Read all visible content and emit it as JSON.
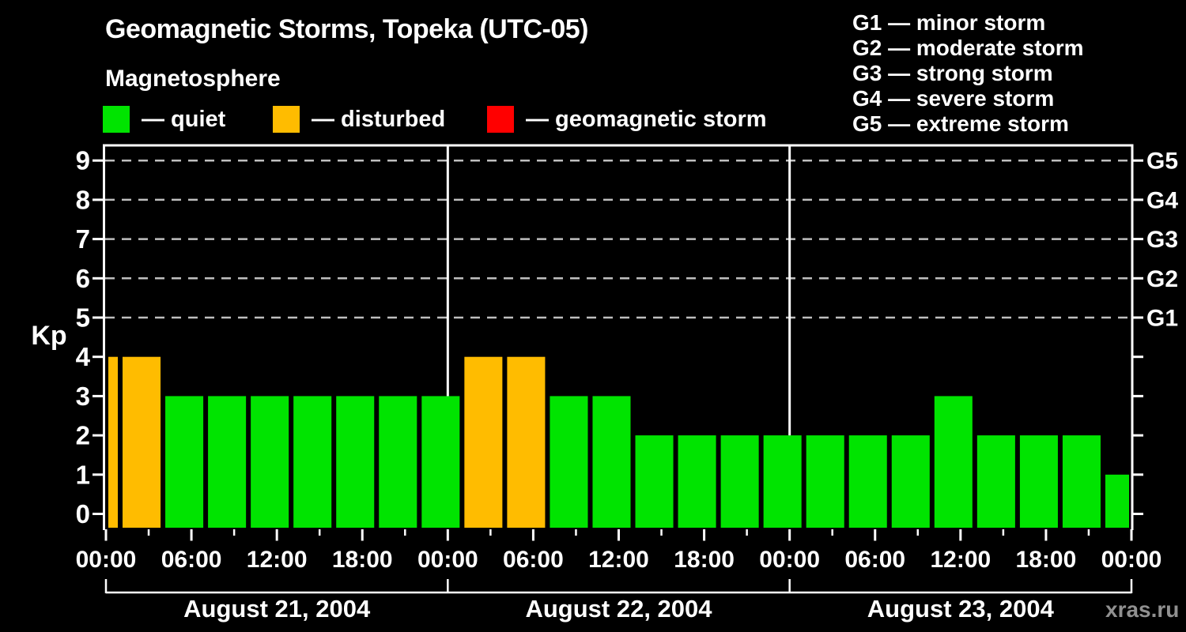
{
  "title": "Geomagnetic Storms, Topeka (UTC-05)",
  "subtitle": "Magnetosphere",
  "legend": {
    "items": [
      {
        "label": "— quiet",
        "color": "#00E400",
        "status": "quiet",
        "swatch_icon": "quiet-color-swatch"
      },
      {
        "label": "— disturbed",
        "color": "#FFBC00",
        "status": "disturbed",
        "swatch_icon": "disturbed-color-swatch"
      },
      {
        "label": "— geomagnetic storm",
        "color": "#FF0000",
        "status": "storm",
        "swatch_icon": "storm-color-swatch"
      }
    ]
  },
  "storm_scale_legend": [
    "G1 — minor storm",
    "G2 — moderate storm",
    "G3 — strong storm",
    "G4 — severe storm",
    "G5 — extreme storm"
  ],
  "watermark": "xras.ru",
  "chart_data": {
    "type": "bar",
    "ylabel": "Kp",
    "ylim": [
      0,
      9
    ],
    "yticks": [
      0,
      1,
      2,
      3,
      4,
      5,
      6,
      7,
      8,
      9
    ],
    "gridlines_kp": [
      5,
      6,
      7,
      8,
      9
    ],
    "right_axis_labels": [
      {
        "kp": 5,
        "label": "G1"
      },
      {
        "kp": 6,
        "label": "G2"
      },
      {
        "kp": 7,
        "label": "G3"
      },
      {
        "kp": 8,
        "label": "G4"
      },
      {
        "kp": 9,
        "label": "G5"
      }
    ],
    "xlim_hours": [
      0,
      72
    ],
    "time_ticks": [
      {
        "hour": 0,
        "label": "00:00"
      },
      {
        "hour": 6,
        "label": "06:00"
      },
      {
        "hour": 12,
        "label": "12:00"
      },
      {
        "hour": 18,
        "label": "18:00"
      },
      {
        "hour": 24,
        "label": "00:00"
      },
      {
        "hour": 30,
        "label": "06:00"
      },
      {
        "hour": 36,
        "label": "12:00"
      },
      {
        "hour": 42,
        "label": "18:00"
      },
      {
        "hour": 48,
        "label": "00:00"
      },
      {
        "hour": 54,
        "label": "06:00"
      },
      {
        "hour": 60,
        "label": "12:00"
      },
      {
        "hour": 66,
        "label": "18:00"
      },
      {
        "hour": 72,
        "label": "00:00"
      }
    ],
    "minor_tick_hours": [
      3,
      9,
      15,
      21,
      27,
      33,
      39,
      45,
      51,
      57,
      63,
      69
    ],
    "day_separator_hours": [
      24,
      48
    ],
    "days": [
      {
        "label": "August 21, 2004",
        "start_hour": 0,
        "end_hour": 24
      },
      {
        "label": "August 22, 2004",
        "start_hour": 24,
        "end_hour": 48
      },
      {
        "label": "August 23, 2004",
        "start_hour": 48,
        "end_hour": 72
      }
    ],
    "bars": [
      {
        "start_hour": 0,
        "end_hour": 1,
        "kp": 4,
        "status": "disturbed"
      },
      {
        "start_hour": 1,
        "end_hour": 4,
        "kp": 4,
        "status": "disturbed"
      },
      {
        "start_hour": 4,
        "end_hour": 7,
        "kp": 3,
        "status": "quiet"
      },
      {
        "start_hour": 7,
        "end_hour": 10,
        "kp": 3,
        "status": "quiet"
      },
      {
        "start_hour": 10,
        "end_hour": 13,
        "kp": 3,
        "status": "quiet"
      },
      {
        "start_hour": 13,
        "end_hour": 16,
        "kp": 3,
        "status": "quiet"
      },
      {
        "start_hour": 16,
        "end_hour": 19,
        "kp": 3,
        "status": "quiet"
      },
      {
        "start_hour": 19,
        "end_hour": 22,
        "kp": 3,
        "status": "quiet"
      },
      {
        "start_hour": 22,
        "end_hour": 25,
        "kp": 3,
        "status": "quiet"
      },
      {
        "start_hour": 25,
        "end_hour": 28,
        "kp": 4,
        "status": "disturbed"
      },
      {
        "start_hour": 28,
        "end_hour": 31,
        "kp": 4,
        "status": "disturbed"
      },
      {
        "start_hour": 31,
        "end_hour": 34,
        "kp": 3,
        "status": "quiet"
      },
      {
        "start_hour": 34,
        "end_hour": 37,
        "kp": 3,
        "status": "quiet"
      },
      {
        "start_hour": 37,
        "end_hour": 40,
        "kp": 2,
        "status": "quiet"
      },
      {
        "start_hour": 40,
        "end_hour": 43,
        "kp": 2,
        "status": "quiet"
      },
      {
        "start_hour": 43,
        "end_hour": 46,
        "kp": 2,
        "status": "quiet"
      },
      {
        "start_hour": 46,
        "end_hour": 49,
        "kp": 2,
        "status": "quiet"
      },
      {
        "start_hour": 49,
        "end_hour": 52,
        "kp": 2,
        "status": "quiet"
      },
      {
        "start_hour": 52,
        "end_hour": 55,
        "kp": 2,
        "status": "quiet"
      },
      {
        "start_hour": 55,
        "end_hour": 58,
        "kp": 2,
        "status": "quiet"
      },
      {
        "start_hour": 58,
        "end_hour": 61,
        "kp": 3,
        "status": "quiet"
      },
      {
        "start_hour": 61,
        "end_hour": 64,
        "kp": 2,
        "status": "quiet"
      },
      {
        "start_hour": 64,
        "end_hour": 67,
        "kp": 2,
        "status": "quiet"
      },
      {
        "start_hour": 67,
        "end_hour": 70,
        "kp": 2,
        "status": "quiet"
      },
      {
        "start_hour": 70,
        "end_hour": 72,
        "kp": 1,
        "status": "quiet"
      }
    ],
    "colors": {
      "quiet": "#00E400",
      "disturbed": "#FFBC00",
      "storm": "#FF0000"
    },
    "axis_color": "#FFFFFF",
    "grid_color": "#BFBFBF",
    "legend_position": "top",
    "grid": "dashed horizontal at storm levels only"
  }
}
